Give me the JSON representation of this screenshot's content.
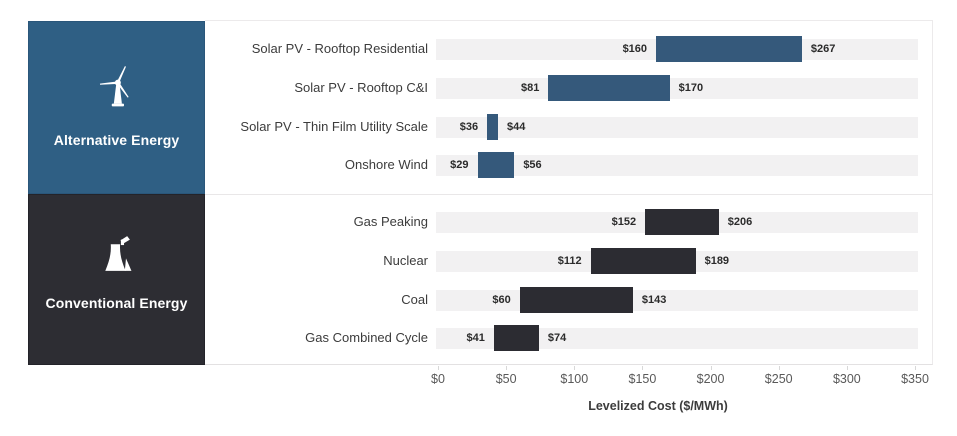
{
  "sidebar": {
    "groups": [
      {
        "label": "Alternative Energy",
        "icon": "wind-turbine-icon",
        "color": "#2F5F84"
      },
      {
        "label": "Conventional Energy",
        "icon": "cooling-tower-icon",
        "color": "#2D2D33"
      }
    ]
  },
  "chart_data": {
    "type": "bar",
    "orientation": "horizontal-range",
    "title": "",
    "xlabel": "Levelized Cost ($/MWh)",
    "xlim": [
      0,
      350
    ],
    "x_ticks": [
      {
        "value": 0,
        "label": "$0"
      },
      {
        "value": 50,
        "label": "$50"
      },
      {
        "value": 100,
        "label": "$100"
      },
      {
        "value": 150,
        "label": "$150"
      },
      {
        "value": 200,
        "label": "$200"
      },
      {
        "value": 250,
        "label": "$250"
      },
      {
        "value": 300,
        "label": "$300"
      },
      {
        "value": 350,
        "label": "$350"
      }
    ],
    "groups": [
      {
        "name": "Alternative Energy",
        "bar_color": "#35597B",
        "rows": [
          {
            "label": "Solar PV - Rooftop Residential",
            "min": 160,
            "max": 267,
            "min_label": "$160",
            "max_label": "$267"
          },
          {
            "label": "Solar PV - Rooftop C&I",
            "min": 81,
            "max": 170,
            "min_label": "$81",
            "max_label": "$170"
          },
          {
            "label": "Solar PV - Thin Film Utility Scale",
            "min": 36,
            "max": 44,
            "min_label": "$36",
            "max_label": "$44"
          },
          {
            "label": "Onshore Wind",
            "min": 29,
            "max": 56,
            "min_label": "$29",
            "max_label": "$56"
          }
        ]
      },
      {
        "name": "Conventional Energy",
        "bar_color": "#2C2C32",
        "rows": [
          {
            "label": "Gas Peaking",
            "min": 152,
            "max": 206,
            "min_label": "$152",
            "max_label": "$206"
          },
          {
            "label": "Nuclear",
            "min": 112,
            "max": 189,
            "min_label": "$112",
            "max_label": "$189"
          },
          {
            "label": "Coal",
            "min": 60,
            "max": 143,
            "min_label": "$60",
            "max_label": "$143"
          },
          {
            "label": "Gas Combined Cycle",
            "min": 41,
            "max": 74,
            "min_label": "$41",
            "max_label": "$74"
          }
        ]
      }
    ]
  },
  "colors": {
    "row_strip": "#F2F1F2",
    "alt_block": "#2F5F84",
    "conv_block": "#2D2D33",
    "tick_text": "#595959",
    "label_text": "#3C3C3C"
  }
}
